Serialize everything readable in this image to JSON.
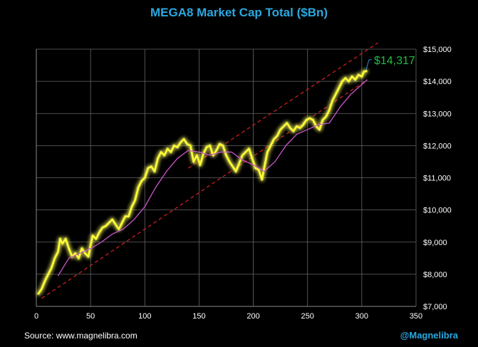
{
  "colors": {
    "title": "#29a8e0",
    "price_line": "#ffff33",
    "glow": "#ffff66",
    "moving_average": "#cc55cc",
    "trend_channel": "#dd2222",
    "last_value_label": "#22bb44",
    "grid": "#666666",
    "handle": "#29a8e0"
  },
  "footer": {
    "source": "Source: www.magnelibra.com",
    "handle": "@Magnelibra"
  },
  "chart_data": {
    "type": "line",
    "title": "MEGA8 Market Cap Total ($Bn)",
    "xlabel": "",
    "ylabel": "",
    "xlim": [
      0,
      350
    ],
    "ylim": [
      7000,
      15000
    ],
    "x_ticks": [
      0,
      50,
      100,
      150,
      200,
      250,
      300,
      350
    ],
    "x_tick_labels": [
      "0",
      "50",
      "100",
      "150",
      "200",
      "250",
      "300",
      "350"
    ],
    "y_ticks": [
      7000,
      8000,
      9000,
      10000,
      11000,
      12000,
      13000,
      14000,
      15000
    ],
    "y_tick_labels": [
      "$7,000",
      "$8,000",
      "$9,000",
      "$10,000",
      "$11,000",
      "$12,000",
      "$13,000",
      "$14,000",
      "$15,000"
    ],
    "grid": true,
    "last_value_label": "$14,317",
    "series": [
      {
        "name": "MEGA8 Market Cap",
        "x": [
          2,
          5,
          8,
          11,
          14,
          17,
          20,
          22,
          24,
          27,
          30,
          33,
          36,
          39,
          42,
          45,
          48,
          50,
          52,
          55,
          58,
          61,
          64,
          67,
          70,
          73,
          76,
          79,
          82,
          85,
          88,
          91,
          94,
          97,
          100,
          103,
          106,
          109,
          112,
          115,
          118,
          121,
          124,
          127,
          130,
          133,
          136,
          139,
          142,
          145,
          148,
          151,
          154,
          157,
          160,
          163,
          166,
          169,
          172,
          175,
          178,
          181,
          184,
          187,
          190,
          193,
          196,
          199,
          202,
          205,
          208,
          210,
          213,
          216,
          219,
          222,
          225,
          228,
          231,
          234,
          237,
          240,
          243,
          246,
          249,
          252,
          255,
          258,
          261,
          264,
          267,
          270,
          273,
          276,
          279,
          282,
          285,
          288,
          291,
          294,
          297,
          300,
          302,
          304
        ],
        "values": [
          7400,
          7550,
          7800,
          8000,
          8200,
          8500,
          8700,
          9100,
          8950,
          9100,
          8800,
          8550,
          8650,
          8500,
          8800,
          8650,
          8550,
          8900,
          9200,
          9100,
          9300,
          9450,
          9500,
          9600,
          9700,
          9550,
          9400,
          9600,
          9800,
          9800,
          10100,
          10300,
          10700,
          10900,
          11000,
          11300,
          11350,
          11200,
          11600,
          11800,
          11700,
          11900,
          11800,
          12000,
          11950,
          12100,
          12200,
          12050,
          12000,
          11500,
          11700,
          11400,
          11750,
          11950,
          12000,
          11700,
          11850,
          12050,
          12000,
          11700,
          11500,
          11350,
          11200,
          11450,
          11700,
          11800,
          11900,
          11600,
          11300,
          11250,
          10950,
          11300,
          11800,
          12000,
          12200,
          12300,
          12500,
          12600,
          12700,
          12550,
          12450,
          12600,
          12550,
          12650,
          12800,
          12850,
          12800,
          12600,
          12500,
          12800,
          12900,
          13100,
          13400,
          13600,
          13800,
          14000,
          14100,
          14000,
          14150,
          14050,
          14200,
          14150,
          14300,
          14317
        ]
      },
      {
        "name": "Moving Average",
        "x": [
          20,
          30,
          40,
          50,
          60,
          70,
          80,
          90,
          100,
          110,
          120,
          130,
          140,
          150,
          160,
          170,
          180,
          190,
          200,
          210,
          220,
          230,
          240,
          250,
          260,
          270,
          280,
          290,
          300,
          305
        ],
        "values": [
          7950,
          8500,
          8650,
          8800,
          9000,
          9250,
          9400,
          9700,
          10100,
          10700,
          11200,
          11600,
          11850,
          11800,
          11700,
          11800,
          11800,
          11550,
          11400,
          11200,
          11500,
          12000,
          12350,
          12500,
          12650,
          12700,
          13200,
          13600,
          13900,
          14050
        ]
      }
    ],
    "trend_channel": [
      {
        "name": "lower",
        "x": [
          5,
          305
        ],
        "values": [
          7250,
          14050
        ]
      },
      {
        "name": "upper",
        "x": [
          140,
          315
        ],
        "values": [
          11300,
          15200
        ]
      }
    ]
  }
}
